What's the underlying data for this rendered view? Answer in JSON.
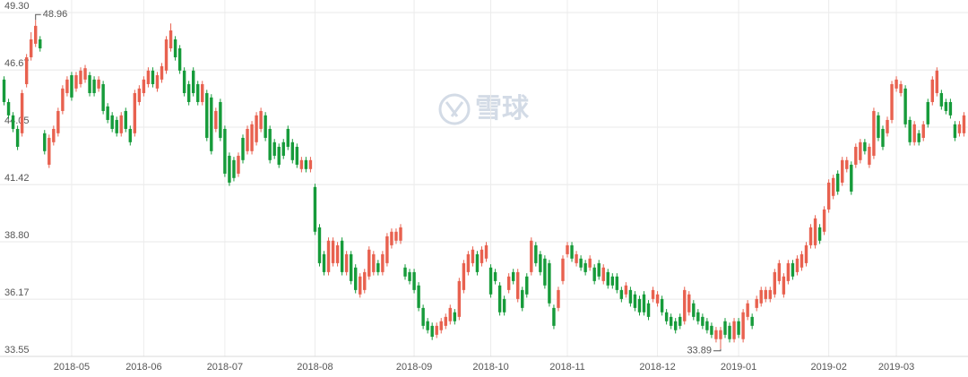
{
  "chart_data": {
    "type": "candlestick",
    "watermark": "雪球",
    "categories": [
      null,
      null,
      null,
      null,
      null,
      null,
      null,
      null,
      null,
      null,
      null,
      null,
      null,
      null,
      null,
      "2018-05",
      null,
      null,
      null,
      null,
      null,
      null,
      null,
      null,
      null,
      null,
      null,
      null,
      null,
      null,
      null,
      "2018-06",
      null,
      null,
      null,
      null,
      null,
      null,
      null,
      null,
      null,
      null,
      null,
      null,
      null,
      null,
      null,
      null,
      null,
      "2018-07",
      null,
      null,
      null,
      null,
      null,
      null,
      null,
      null,
      null,
      null,
      null,
      null,
      null,
      null,
      null,
      null,
      null,
      null,
      null,
      "2018-08",
      null,
      null,
      null,
      null,
      null,
      null,
      null,
      null,
      null,
      null,
      null,
      null,
      null,
      null,
      null,
      null,
      null,
      null,
      null,
      null,
      null,
      "2018-09",
      null,
      null,
      null,
      null,
      null,
      null,
      null,
      null,
      null,
      null,
      null,
      null,
      null,
      null,
      null,
      null,
      "2018-10",
      null,
      null,
      null,
      null,
      null,
      null,
      null,
      null,
      null,
      null,
      null,
      null,
      null,
      null,
      null,
      null,
      "2018-11",
      null,
      null,
      null,
      null,
      null,
      null,
      null,
      null,
      null,
      null,
      null,
      null,
      null,
      null,
      null,
      null,
      null,
      null,
      null,
      "2018-12",
      null,
      null,
      null,
      null,
      null,
      null,
      null,
      null,
      null,
      null,
      null,
      null,
      null,
      null,
      null,
      null,
      null,
      "2019-01",
      null,
      null,
      null,
      null,
      null,
      null,
      null,
      null,
      null,
      null,
      null,
      null,
      null,
      null,
      null,
      null,
      null,
      null,
      null,
      "2019-02",
      null,
      null,
      null,
      null,
      null,
      null,
      null,
      null,
      null,
      null,
      null,
      null,
      null,
      null,
      "2019-03",
      null,
      null,
      null,
      null,
      null,
      null,
      null,
      null,
      null,
      null,
      null,
      null,
      null,
      null,
      null
    ],
    "open": [
      46.23,
      45.2,
      44.59,
      43.97,
      43.77,
      46.02,
      47.25,
      47.87,
      48.07,
      43.77,
      42.33,
      43.36,
      43.77,
      44.79,
      45.61,
      46.43,
      45.82,
      46.02,
      46.23,
      46.43,
      46.23,
      45.82,
      46.02,
      45.0,
      44.59,
      44.38,
      43.77,
      44.79,
      43.97,
      43.77,
      45.2,
      45.61,
      46.02,
      46.64,
      45.82,
      46.23,
      46.64,
      47.66,
      48.07,
      47.66,
      46.64,
      46.02,
      46.64,
      46.02,
      45.2,
      45.61,
      45.41,
      43.97,
      45.2,
      43.97,
      42.74,
      42.54,
      41.92,
      43.56,
      42.95,
      42.95,
      43.36,
      43.97,
      44.59,
      43.97,
      43.36,
      43.15,
      43.36,
      43.97,
      43.36,
      43.15,
      42.13,
      42.54,
      42.13,
      41.31,
      39.46,
      38.23,
      37.41,
      37.82,
      37.82,
      38.85,
      37.41,
      38.23,
      37.62,
      36.39,
      36.59,
      37.21,
      37.41,
      37.82,
      37.41,
      37.82,
      38.64,
      38.85,
      38.85,
      37.62,
      37.41,
      37.41,
      36.8,
      35.77,
      35.16,
      34.95,
      34.54,
      34.75,
      34.95,
      35.16,
      35.57,
      35.36,
      36.59,
      37.41,
      37.82,
      38.23,
      37.82,
      38.03,
      37.62,
      37.41,
      36.8,
      36.18,
      36.59,
      37.41,
      36.18,
      36.59,
      37.21,
      37.41,
      38.64,
      38.23,
      38.03,
      37.82,
      35.77,
      35.77,
      37.0,
      38.23,
      38.64,
      37.82,
      38.03,
      37.82,
      37.62,
      37.62,
      37.82,
      37.0,
      37.41,
      37.21,
      37.21,
      36.59,
      36.39,
      36.59,
      36.39,
      36.18,
      36.39,
      35.98,
      36.18,
      35.98,
      36.18,
      35.57,
      35.36,
      35.16,
      35.36,
      35.16,
      35.57,
      35.98,
      35.57,
      35.36,
      35.16,
      34.95,
      34.34,
      34.34,
      35.16,
      34.95,
      34.34,
      35.16,
      34.34,
      35.36,
      35.36,
      35.77,
      35.98,
      36.18,
      36.18,
      36.39,
      37.0,
      36.39,
      37.0,
      37.82,
      37.41,
      37.62,
      37.82,
      38.64,
      38.64,
      39.46,
      39.26,
      40.28,
      40.9,
      41.92,
      41.51,
      42.13,
      42.33,
      42.33,
      42.54,
      43.36,
      42.33,
      42.74,
      44.59,
      43.97,
      43.77,
      44.38,
      45.82,
      45.61,
      45.82,
      44.38,
      43.36,
      43.77,
      43.56,
      45.2,
      45.2,
      45.61,
      45.61,
      45.2,
      45.2,
      44.18,
      43.77,
      43.77
    ],
    "high": [
      46.38,
      45.35,
      44.74,
      44.12,
      45.76,
      47.4,
      48.4,
      48.96,
      48.22,
      43.92,
      43.71,
      44.12,
      44.94,
      45.97,
      46.38,
      46.58,
      46.58,
      46.79,
      46.9,
      46.58,
      46.38,
      46.38,
      46.17,
      45.15,
      44.74,
      44.53,
      44.74,
      44.94,
      44.12,
      45.76,
      45.97,
      46.38,
      46.79,
      46.79,
      46.58,
      46.99,
      48.22,
      48.8,
      48.22,
      47.81,
      46.79,
      46.17,
      46.79,
      46.17,
      46.17,
      45.76,
      45.56,
      44.94,
      45.35,
      44.12,
      42.89,
      42.69,
      42.89,
      43.71,
      44.12,
      44.33,
      44.74,
      44.94,
      44.74,
      44.12,
      43.51,
      43.3,
      43.51,
      44.12,
      43.51,
      43.3,
      42.69,
      42.69,
      42.69,
      41.46,
      39.61,
      38.38,
      39.0,
      39.0,
      38.79,
      39.0,
      38.38,
      38.38,
      37.77,
      37.36,
      37.56,
      38.59,
      38.38,
      37.97,
      38.38,
      39.2,
      39.41,
      39.41,
      39.61,
      37.77,
      37.56,
      37.56,
      36.95,
      35.92,
      35.31,
      35.1,
      35.1,
      35.31,
      35.51,
      35.92,
      35.72,
      37.15,
      37.97,
      38.38,
      38.59,
      38.38,
      38.59,
      38.79,
      37.77,
      37.56,
      36.95,
      36.33,
      37.36,
      37.56,
      37.56,
      36.74,
      37.36,
      39.0,
      38.79,
      38.38,
      38.18,
      37.97,
      35.92,
      36.74,
      38.18,
      38.79,
      38.79,
      38.38,
      38.18,
      37.97,
      38.18,
      37.77,
      37.97,
      37.77,
      37.56,
      37.36,
      37.36,
      36.74,
      36.95,
      36.74,
      36.54,
      36.33,
      36.54,
      36.13,
      36.74,
      36.54,
      36.33,
      35.72,
      35.51,
      35.31,
      35.51,
      36.74,
      36.54,
      36.13,
      35.72,
      35.51,
      35.31,
      35.1,
      34.9,
      34.9,
      35.31,
      35.1,
      35.31,
      35.31,
      35.72,
      36.13,
      35.51,
      36.33,
      36.74,
      36.74,
      36.74,
      37.56,
      37.97,
      37.36,
      37.97,
      37.97,
      38.18,
      38.38,
      38.79,
      39.61,
      40.02,
      39.61,
      40.43,
      41.66,
      41.87,
      42.07,
      42.69,
      42.69,
      42.48,
      43.3,
      43.51,
      43.51,
      43.3,
      44.94,
      44.74,
      44.12,
      44.53,
      46.17,
      46.38,
      46.17,
      45.97,
      44.53,
      44.33,
      43.92,
      44.33,
      45.35,
      46.38,
      46.79,
      45.76,
      45.35,
      45.35,
      44.33,
      44.33,
      44.74
    ],
    "low": [
      45.05,
      44.44,
      43.82,
      43.0,
      43.62,
      45.87,
      47.1,
      47.72,
      47.51,
      42.8,
      42.18,
      43.21,
      43.62,
      44.64,
      45.46,
      45.26,
      45.67,
      45.87,
      46.08,
      45.46,
      45.46,
      45.67,
      44.64,
      44.23,
      43.82,
      43.62,
      43.62,
      43.82,
      43.21,
      43.62,
      45.05,
      45.46,
      45.87,
      45.87,
      45.67,
      46.08,
      46.49,
      47.51,
      47.1,
      46.49,
      45.46,
      45.05,
      45.46,
      45.05,
      45.05,
      43.41,
      42.8,
      43.82,
      43.41,
      41.77,
      41.36,
      41.57,
      41.77,
      42.39,
      42.8,
      42.8,
      43.21,
      43.82,
      43.41,
      42.39,
      42.59,
      42.18,
      42.59,
      43.0,
      42.39,
      42.18,
      41.98,
      41.98,
      41.98,
      39.11,
      37.67,
      37.26,
      37.26,
      37.67,
      37.67,
      37.26,
      37.26,
      36.85,
      36.44,
      36.24,
      36.44,
      37.06,
      37.26,
      37.26,
      37.26,
      37.67,
      38.49,
      38.7,
      38.7,
      37.06,
      36.85,
      36.44,
      35.62,
      34.8,
      34.6,
      34.3,
      34.39,
      34.6,
      34.8,
      35.01,
      35.01,
      35.21,
      36.44,
      37.26,
      37.67,
      37.26,
      37.67,
      37.88,
      36.24,
      36.85,
      35.42,
      35.42,
      36.44,
      36.85,
      36.03,
      35.62,
      36.24,
      37.26,
      37.67,
      37.26,
      36.65,
      35.83,
      34.8,
      35.62,
      36.85,
      38.08,
      37.88,
      37.67,
      37.47,
      37.26,
      37.47,
      36.85,
      37.06,
      36.85,
      36.65,
      36.65,
      36.44,
      36.03,
      36.24,
      35.83,
      35.62,
      35.42,
      35.42,
      35.21,
      36.03,
      35.83,
      35.42,
      35.01,
      34.8,
      34.6,
      34.8,
      35.01,
      35.42,
      35.21,
      35.01,
      34.8,
      34.6,
      34.39,
      34.19,
      33.89,
      34.39,
      34.19,
      34.19,
      34.39,
      34.19,
      35.21,
      34.8,
      35.62,
      35.83,
      36.03,
      36.03,
      36.24,
      36.85,
      36.24,
      36.85,
      37.06,
      37.26,
      37.47,
      37.67,
      38.49,
      38.49,
      38.7,
      39.11,
      40.13,
      40.75,
      40.95,
      41.36,
      41.98,
      40.95,
      42.18,
      42.39,
      42.8,
      42.18,
      42.59,
      43.41,
      43.0,
      43.62,
      44.23,
      45.67,
      45.46,
      44.03,
      43.21,
      43.21,
      43.21,
      43.41,
      44.03,
      45.05,
      45.46,
      44.85,
      44.64,
      44.44,
      43.41,
      43.62,
      43.62
    ],
    "close": [
      45.2,
      44.59,
      43.97,
      43.15,
      45.61,
      47.25,
      48.07,
      48.69,
      47.66,
      42.95,
      43.56,
      43.97,
      44.79,
      45.82,
      46.23,
      45.41,
      46.43,
      46.64,
      46.75,
      45.61,
      45.61,
      46.23,
      44.79,
      44.38,
      43.97,
      43.77,
      44.59,
      43.97,
      43.36,
      45.61,
      45.82,
      46.23,
      46.64,
      46.02,
      46.43,
      46.84,
      48.07,
      48.48,
      47.25,
      46.64,
      45.61,
      45.2,
      45.61,
      45.2,
      46.02,
      43.56,
      42.95,
      44.79,
      43.56,
      41.92,
      41.51,
      41.72,
      42.74,
      42.54,
      43.97,
      44.18,
      44.59,
      44.79,
      43.56,
      42.54,
      42.74,
      42.33,
      42.74,
      43.15,
      42.54,
      42.33,
      42.54,
      42.13,
      42.54,
      39.26,
      37.82,
      37.41,
      38.85,
      38.85,
      38.64,
      37.41,
      38.23,
      37.0,
      36.59,
      37.21,
      37.41,
      38.44,
      38.23,
      37.41,
      38.23,
      39.05,
      39.26,
      39.26,
      39.46,
      37.21,
      37.0,
      36.59,
      35.77,
      34.95,
      34.75,
      34.45,
      34.95,
      35.16,
      35.36,
      35.77,
      35.16,
      37.0,
      37.82,
      38.23,
      38.44,
      37.41,
      38.44,
      38.64,
      36.39,
      37.0,
      35.57,
      35.57,
      37.21,
      37.0,
      37.41,
      35.77,
      36.39,
      38.85,
      37.82,
      37.41,
      36.8,
      35.98,
      34.95,
      36.59,
      38.03,
      38.64,
      38.03,
      38.23,
      37.62,
      37.41,
      38.03,
      37.0,
      37.21,
      37.62,
      36.8,
      36.8,
      36.59,
      36.18,
      36.8,
      35.98,
      35.77,
      35.57,
      35.57,
      35.36,
      36.59,
      36.39,
      35.57,
      35.16,
      34.95,
      34.75,
      34.95,
      36.59,
      36.39,
      35.36,
      35.16,
      34.95,
      34.75,
      34.54,
      34.75,
      34.75,
      34.54,
      34.34,
      35.16,
      34.54,
      35.57,
      35.98,
      34.95,
      36.18,
      36.59,
      36.59,
      36.59,
      37.41,
      37.82,
      37.21,
      37.82,
      37.21,
      38.03,
      38.23,
      38.64,
      39.46,
      39.87,
      38.85,
      40.28,
      41.51,
      41.72,
      41.1,
      42.54,
      42.54,
      41.1,
      43.15,
      43.36,
      42.95,
      43.15,
      44.79,
      43.56,
      43.15,
      44.38,
      46.02,
      46.23,
      46.02,
      44.18,
      43.36,
      44.18,
      43.36,
      44.18,
      44.18,
      46.23,
      46.64,
      45.0,
      44.79,
      44.59,
      43.56,
      44.18,
      44.59
    ],
    "up_color": "#e8614f",
    "down_color": "#169b3a",
    "ylim": [
      33.55,
      49.3
    ],
    "yticks": [
      33.55,
      36.17,
      {
        "value": 38.8,
        "label": "38.80"
      },
      41.42,
      44.05,
      46.67,
      {
        "value": 49.3,
        "label": "49.30"
      }
    ],
    "grid": true
  }
}
